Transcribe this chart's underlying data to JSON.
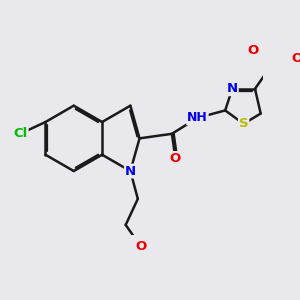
{
  "bg_color": "#e8e8ed",
  "bond_color": "#1a1a1a",
  "bond_width": 1.8,
  "atom_colors": {
    "Cl": "#00bb00",
    "N": "#0000ee",
    "O": "#ee0000",
    "S": "#bbbb00",
    "H": "#777799",
    "C": "#1a1a1a"
  },
  "fig_size": [
    3.0,
    3.0
  ],
  "dpi": 100,
  "xlim": [
    -4.5,
    5.5
  ],
  "ylim": [
    -3.5,
    3.0
  ]
}
